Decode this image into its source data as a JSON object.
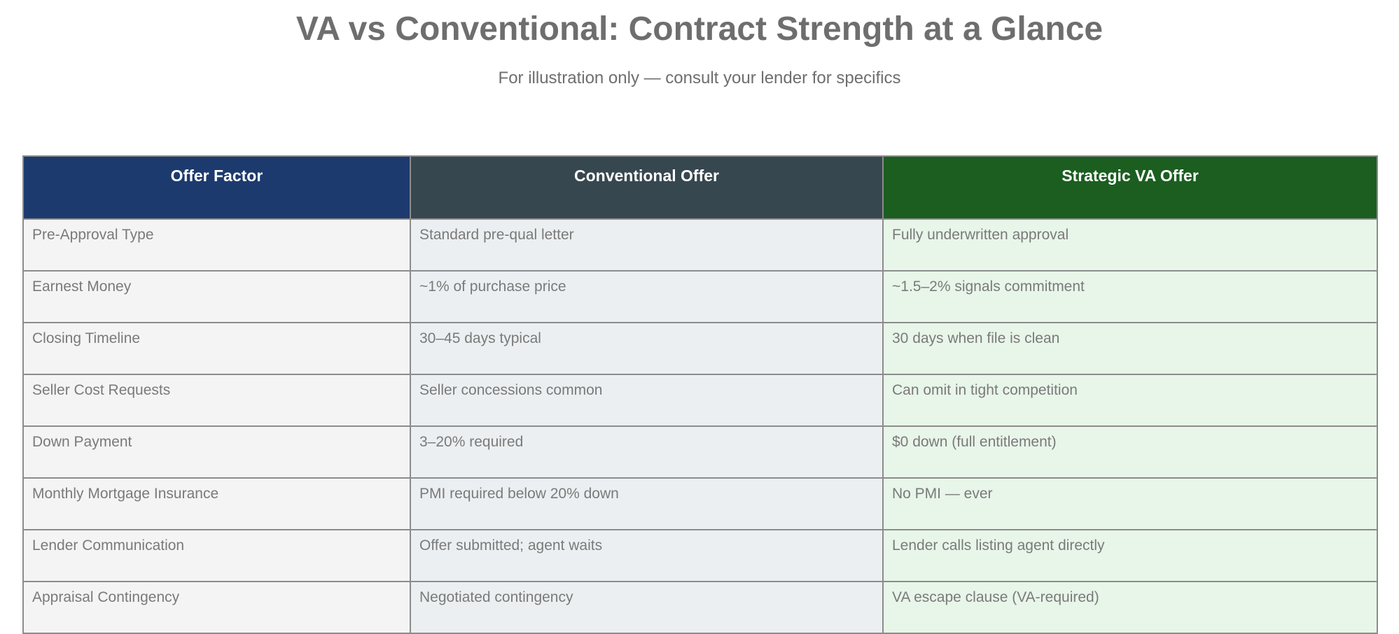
{
  "header": {
    "title": "VA vs Conventional: Contract Strength at a Glance",
    "subtitle": "For illustration only — consult your lender for specifics"
  },
  "table": {
    "columns": [
      "Offer Factor",
      "Conventional Offer",
      "Strategic VA Offer"
    ],
    "rows": [
      [
        "Pre-Approval Type",
        "Standard pre-qual letter",
        "Fully underwritten approval"
      ],
      [
        "Earnest Money",
        "~1% of purchase price",
        "~1.5–2% signals commitment"
      ],
      [
        "Closing Timeline",
        "30–45 days typical",
        "30 days when file is clean"
      ],
      [
        "Seller Cost Requests",
        "Seller concessions common",
        "Can omit in tight competition"
      ],
      [
        "Down Payment",
        "3–20% required",
        "$0 down (full entitlement)"
      ],
      [
        "Monthly Mortgage Insurance",
        "PMI required below 20% down",
        "No PMI — ever"
      ],
      [
        "Lender Communication",
        "Offer submitted; agent waits",
        "Lender calls listing agent directly"
      ],
      [
        "Appraisal Contingency",
        "Negotiated contingency",
        "VA escape clause (VA-required)"
      ]
    ]
  }
}
